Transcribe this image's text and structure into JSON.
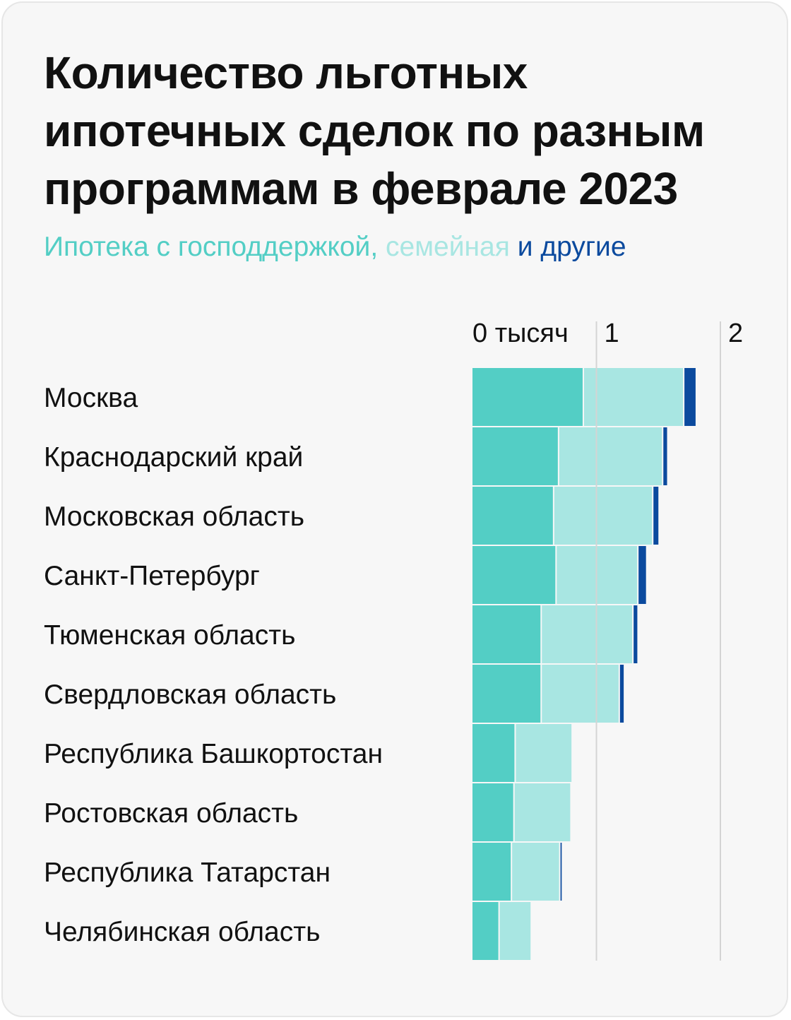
{
  "title": "Количество льготных ипотечных сделок по разным программам в феврале 2023",
  "subtitle": {
    "parts": [
      {
        "text": "Ипотека с господдержкой,",
        "color": "#53CEC5"
      },
      {
        "text": "семейная",
        "color": "#A8E6E2"
      },
      {
        "text": "и другие",
        "color": "#0B4A9E"
      }
    ]
  },
  "chart_data": {
    "type": "bar",
    "orientation": "horizontal",
    "stacked": true,
    "x_ticks": [
      {
        "value": 0,
        "label": "0 тысяч"
      },
      {
        "value": 1,
        "label": "1"
      },
      {
        "value": 2,
        "label": "2"
      }
    ],
    "xlim": [
      0,
      2.1
    ],
    "grid": true,
    "categories": [
      "Москва",
      "Краснодарский край",
      "Московская область",
      "Санкт-Петербург",
      "Тюменская область",
      "Свердловская область",
      "Республика Башкортостан",
      "Ростовская область",
      "Республика Татарстан",
      "Челябинская область"
    ],
    "series": [
      {
        "color": "#53CEC5",
        "values": [
          0.9,
          0.7,
          0.66,
          0.68,
          0.56,
          0.56,
          0.35,
          0.34,
          0.32,
          0.22
        ]
      },
      {
        "color": "#A8E6E2",
        "values": [
          0.81,
          0.84,
          0.8,
          0.66,
          0.74,
          0.63,
          0.46,
          0.46,
          0.39,
          0.26
        ]
      },
      {
        "color": "#0B4A9E",
        "values": [
          0.09,
          0.03,
          0.04,
          0.06,
          0.03,
          0.03,
          0.0,
          0.0,
          0.01,
          0.0
        ]
      }
    ]
  }
}
